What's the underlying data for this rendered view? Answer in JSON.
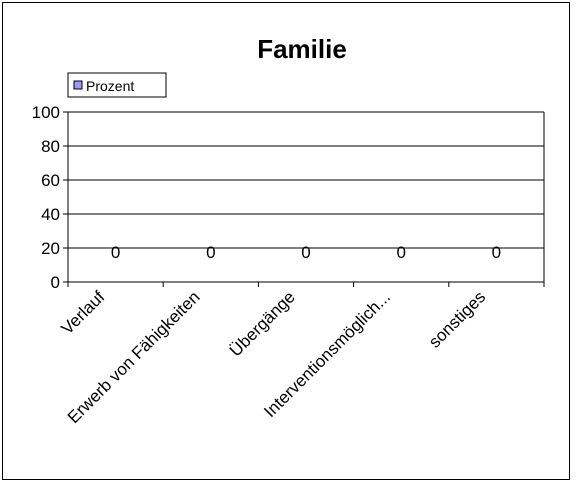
{
  "chart_data": {
    "type": "bar",
    "title": "Familie",
    "categories": [
      "Verlauf",
      "Erwerb von Fähigkeiten",
      "Übergänge",
      "Interventionsmöglich...",
      "sonstiges"
    ],
    "series": [
      {
        "name": "Prozent",
        "values": [
          0,
          0,
          0,
          0,
          0
        ],
        "color": "#9999ff"
      }
    ],
    "data_labels": [
      "0",
      "0",
      "0",
      "0",
      "0"
    ],
    "yticks": [
      "0",
      "20",
      "40",
      "60",
      "80",
      "100"
    ],
    "ylim": [
      0,
      100
    ],
    "grid": true,
    "legend": "top-left"
  }
}
